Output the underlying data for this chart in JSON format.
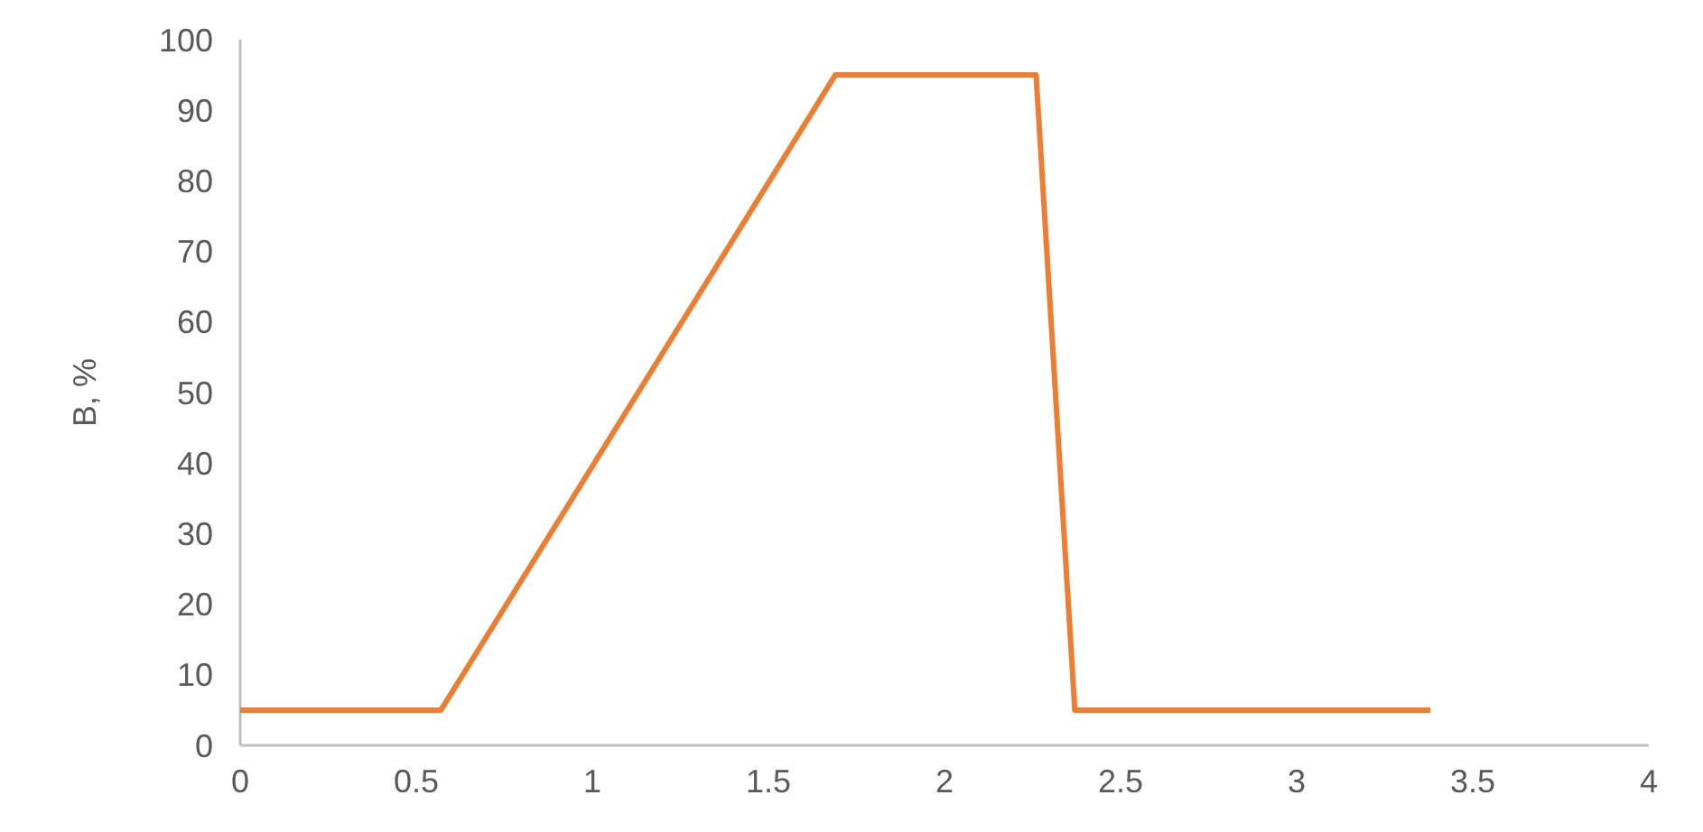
{
  "chart_data": {
    "type": "line",
    "ylabel": "B, %",
    "x": [
      0,
      0.57,
      1.69,
      2.26,
      2.37,
      3.38
    ],
    "series": [
      {
        "color": "#ed7d31",
        "values": [
          5,
          5,
          95,
          95,
          5,
          5
        ]
      }
    ],
    "xlim": [
      0,
      4
    ],
    "xticks": [
      0,
      0.5,
      1,
      1.5,
      2,
      2.5,
      3,
      3.5,
      4
    ],
    "ylim": [
      0,
      100
    ],
    "yticks": [
      0,
      10,
      20,
      30,
      40,
      50,
      60,
      70,
      80,
      90,
      100
    ],
    "grid": false,
    "marker": "none",
    "line_style": "solid"
  }
}
